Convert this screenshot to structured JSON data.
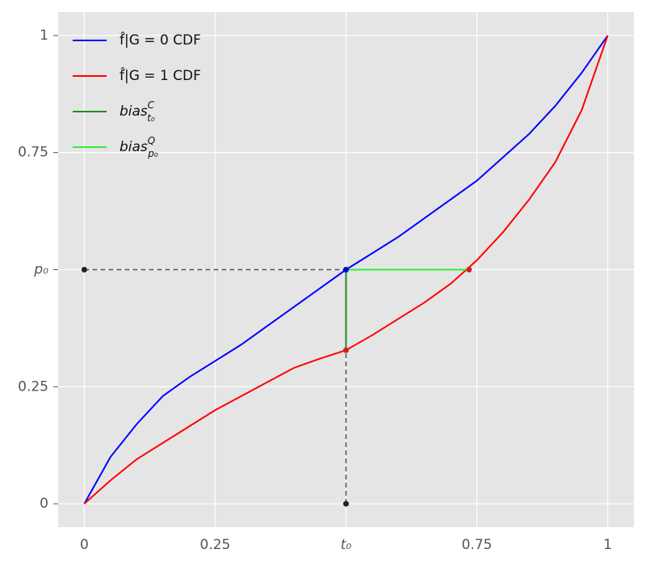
{
  "chart_data": {
    "type": "line",
    "xlim": [
      -0.05,
      1.05
    ],
    "ylim": [
      -0.05,
      1.05
    ],
    "xticks": [
      0,
      0.25,
      {
        "value": 0.5,
        "label": "t₀"
      },
      0.75,
      1
    ],
    "yticks": [
      0,
      0.25,
      {
        "value": 0.5,
        "label": "p₀"
      },
      0.75,
      1
    ],
    "grid": true,
    "legend": "upper left",
    "series": [
      {
        "name": "f̂|G = 0 CDF",
        "color": "#0000ff",
        "x": [
          0,
          0.05,
          0.1,
          0.15,
          0.2,
          0.25,
          0.3,
          0.35,
          0.4,
          0.45,
          0.5,
          0.55,
          0.6,
          0.65,
          0.7,
          0.75,
          0.8,
          0.85,
          0.9,
          0.95,
          1
        ],
        "values": [
          0,
          0.1,
          0.17,
          0.23,
          0.27,
          0.305,
          0.34,
          0.38,
          0.42,
          0.46,
          0.5,
          0.535,
          0.57,
          0.61,
          0.65,
          0.69,
          0.74,
          0.79,
          0.85,
          0.92,
          1
        ]
      },
      {
        "name": "f̂|G = 1 CDF",
        "color": "#ff0000",
        "x": [
          0,
          0.05,
          0.1,
          0.15,
          0.2,
          0.25,
          0.3,
          0.35,
          0.4,
          0.45,
          0.5,
          0.55,
          0.6,
          0.65,
          0.7,
          0.75,
          0.8,
          0.85,
          0.9,
          0.95,
          1
        ],
        "values": [
          0,
          0.05,
          0.095,
          0.13,
          0.165,
          0.2,
          0.23,
          0.26,
          0.29,
          0.31,
          0.328,
          0.36,
          0.395,
          0.43,
          0.47,
          0.52,
          0.58,
          0.65,
          0.73,
          0.84,
          1
        ]
      },
      {
        "name": "bias",
        "sup": "C",
        "sub": "t₀",
        "color": "#228b22",
        "x": [
          0.5,
          0.5
        ],
        "values": [
          0.5,
          0.328
        ]
      },
      {
        "name": "bias",
        "sup": "Q",
        "sub": "p₀",
        "color": "#33ee33",
        "x": [
          0.5,
          0.735
        ],
        "values": [
          0.5,
          0.5
        ]
      }
    ],
    "guides": [
      {
        "x": [
          0,
          0.5
        ],
        "values": [
          0.5,
          0.5
        ]
      },
      {
        "x": [
          0.5,
          0.5
        ],
        "values": [
          0,
          0.328
        ]
      }
    ],
    "points": [
      {
        "x": 0,
        "value": 0.5,
        "color": "#222222"
      },
      {
        "x": 0.5,
        "value": 0,
        "color": "#222222"
      },
      {
        "x": 0.5,
        "value": 0.5,
        "color": "#0000cc"
      },
      {
        "x": 0.5,
        "value": 0.328,
        "color": "#cc2222"
      },
      {
        "x": 0.735,
        "value": 0.5,
        "color": "#cc2222"
      }
    ]
  }
}
